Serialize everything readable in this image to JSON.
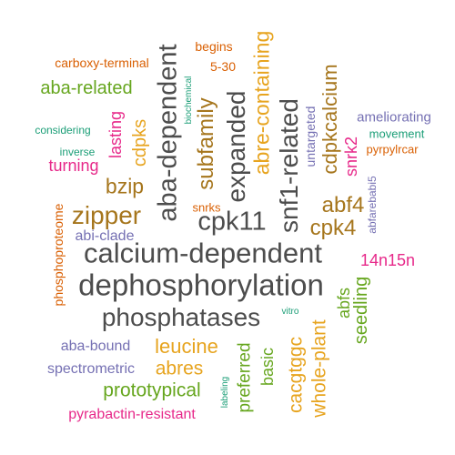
{
  "palette": {
    "dark_gray": "#4d4d4d",
    "orange": "#e7a41f",
    "brown": "#a6761d",
    "olive_green": "#66a61e",
    "teal": "#1b9e77",
    "rust": "#d95f02",
    "magenta": "#e7298a",
    "purple": "#7570b3"
  },
  "words": [
    {
      "text": "dephosphorylation",
      "color": "#4d4d4d"
    },
    {
      "text": "calcium-dependent",
      "color": "#4d4d4d"
    },
    {
      "text": "phosphatases",
      "color": "#4d4d4d"
    },
    {
      "text": "cpk11",
      "color": "#4d4d4d"
    },
    {
      "text": "aba-dependent",
      "color": "#4d4d4d"
    },
    {
      "text": "expanded",
      "color": "#4d4d4d"
    },
    {
      "text": "snf1-related",
      "color": "#4d4d4d"
    },
    {
      "text": "zipper",
      "color": "#a6761d"
    },
    {
      "text": "bzip",
      "color": "#a6761d"
    },
    {
      "text": "subfamily",
      "color": "#a6761d"
    },
    {
      "text": "abre-containing",
      "color": "#e7a41f"
    },
    {
      "text": "cdpkcalcium",
      "color": "#a6761d"
    },
    {
      "text": "abf4",
      "color": "#a6761d"
    },
    {
      "text": "cpk4",
      "color": "#a6761d"
    },
    {
      "text": "leucine",
      "color": "#e7a41f"
    },
    {
      "text": "abres",
      "color": "#e7a41f"
    },
    {
      "text": "prototypical",
      "color": "#66a61e"
    },
    {
      "text": "cacgtggc",
      "color": "#e7a41f"
    },
    {
      "text": "whole-plant",
      "color": "#e7a41f"
    },
    {
      "text": "aba-related",
      "color": "#66a61e"
    },
    {
      "text": "cdpks",
      "color": "#e7a41f"
    },
    {
      "text": "lasting",
      "color": "#e7298a"
    },
    {
      "text": "turning",
      "color": "#e7298a"
    },
    {
      "text": "preferred",
      "color": "#66a61e"
    },
    {
      "text": "basic",
      "color": "#66a61e"
    },
    {
      "text": "abfs",
      "color": "#66a61e"
    },
    {
      "text": "seedling",
      "color": "#66a61e"
    },
    {
      "text": "snrk2",
      "color": "#e7298a"
    },
    {
      "text": "14n15n",
      "color": "#e7298a"
    },
    {
      "text": "pyrabactin-resistant",
      "color": "#e7298a"
    },
    {
      "text": "abi-clade",
      "color": "#7570b3"
    },
    {
      "text": "aba-bound",
      "color": "#7570b3"
    },
    {
      "text": "spectrometric",
      "color": "#7570b3"
    },
    {
      "text": "ameliorating",
      "color": "#7570b3"
    },
    {
      "text": "abfarebabi5",
      "color": "#7570b3"
    },
    {
      "text": "untargeted",
      "color": "#7570b3"
    },
    {
      "text": "carboxy-terminal",
      "color": "#d95f02"
    },
    {
      "text": "begins",
      "color": "#d95f02"
    },
    {
      "text": "5-30",
      "color": "#d95f02"
    },
    {
      "text": "phosphoproteome",
      "color": "#d95f02"
    },
    {
      "text": "snrks",
      "color": "#d95f02"
    },
    {
      "text": "pyrpylrcar",
      "color": "#d95f02"
    },
    {
      "text": "considering",
      "color": "#1b9e77"
    },
    {
      "text": "inverse",
      "color": "#1b9e77"
    },
    {
      "text": "biochemical",
      "color": "#1b9e77"
    },
    {
      "text": "movement",
      "color": "#1b9e77"
    },
    {
      "text": "labeling",
      "color": "#1b9e77"
    },
    {
      "text": "vitro",
      "color": "#1b9e77"
    }
  ]
}
